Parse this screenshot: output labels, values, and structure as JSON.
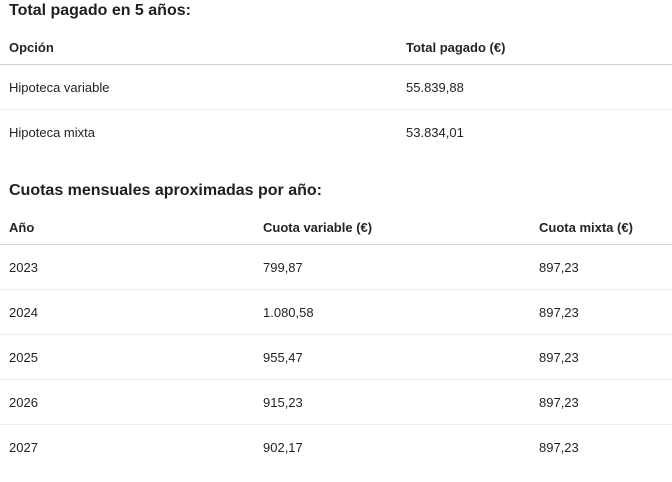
{
  "section1": {
    "title": "Total pagado en 5 años:",
    "headers": [
      "Opción",
      "Total pagado (€)"
    ],
    "rows": [
      [
        "Hipoteca variable",
        "55.839,88"
      ],
      [
        "Hipoteca mixta",
        "53.834,01"
      ]
    ]
  },
  "section2": {
    "title": "Cuotas mensuales aproximadas por año:",
    "headers": [
      "Año",
      "Cuota variable (€)",
      "Cuota mixta (€)"
    ],
    "rows": [
      [
        "2023",
        "799,87",
        "897,23"
      ],
      [
        "2024",
        "1.080,58",
        "897,23"
      ],
      [
        "2025",
        "955,47",
        "897,23"
      ],
      [
        "2026",
        "915,23",
        "897,23"
      ],
      [
        "2027",
        "902,17",
        "897,23"
      ]
    ]
  }
}
